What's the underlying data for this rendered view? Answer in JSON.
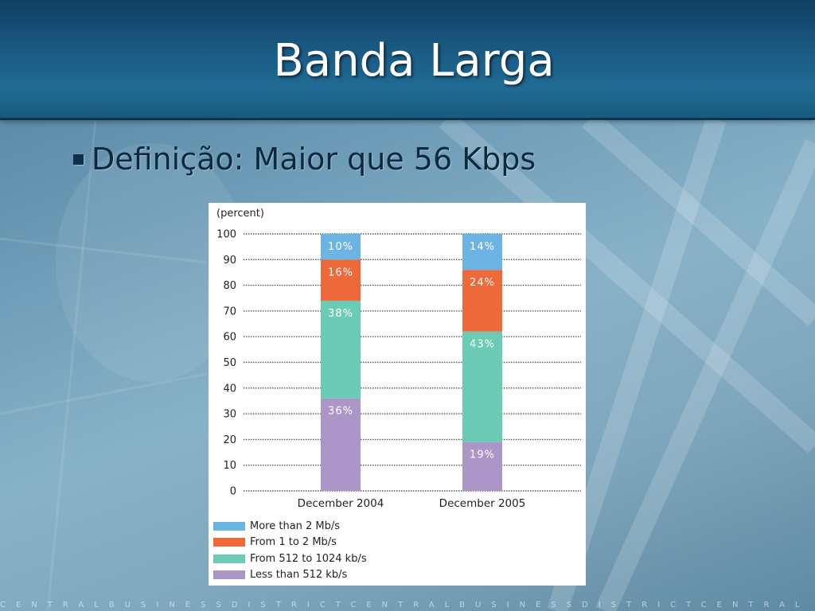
{
  "slide": {
    "title": "Banda Larga",
    "bullet": "Definição: Maior que 56 Kbps",
    "footer_watermark": "CENTRALBUSINESSDISTRICTCENTRALBUSINESSDISTRICTCENTRAL"
  },
  "colors": {
    "more_than_2": "#6cb4e4",
    "from_1_to_2": "#ef6a3a",
    "from_512_to_1024": "#6ccbb4",
    "less_than_512": "#ac96c8"
  },
  "chart_data": {
    "type": "bar",
    "stacked": true,
    "ylabel": "(percent)",
    "ylim": [
      0,
      100
    ],
    "yticks": [
      0,
      10,
      20,
      30,
      40,
      50,
      60,
      70,
      80,
      90,
      100
    ],
    "grid": true,
    "legend_position": "bottom",
    "categories": [
      "December 2004",
      "December 2005"
    ],
    "series": [
      {
        "name": "Less than 512 kb/s",
        "color": "#ac96c8",
        "values": [
          36,
          19
        ],
        "labels": [
          "36%",
          "19%"
        ]
      },
      {
        "name": "From 512 to 1024 kb/s",
        "color": "#6ccbb4",
        "values": [
          38,
          43
        ],
        "labels": [
          "38%",
          "43%"
        ]
      },
      {
        "name": "From 1 to 2 Mb/s",
        "color": "#ef6a3a",
        "values": [
          16,
          24
        ],
        "labels": [
          "16%",
          "24%"
        ]
      },
      {
        "name": "More than 2 Mb/s",
        "color": "#6cb4e4",
        "values": [
          10,
          14
        ],
        "labels": [
          "10%",
          "14%"
        ]
      }
    ],
    "legend_order": [
      "More than 2 Mb/s",
      "From 1 to 2 Mb/s",
      "From 512 to 1024 kb/s",
      "Less than 512 kb/s"
    ]
  }
}
